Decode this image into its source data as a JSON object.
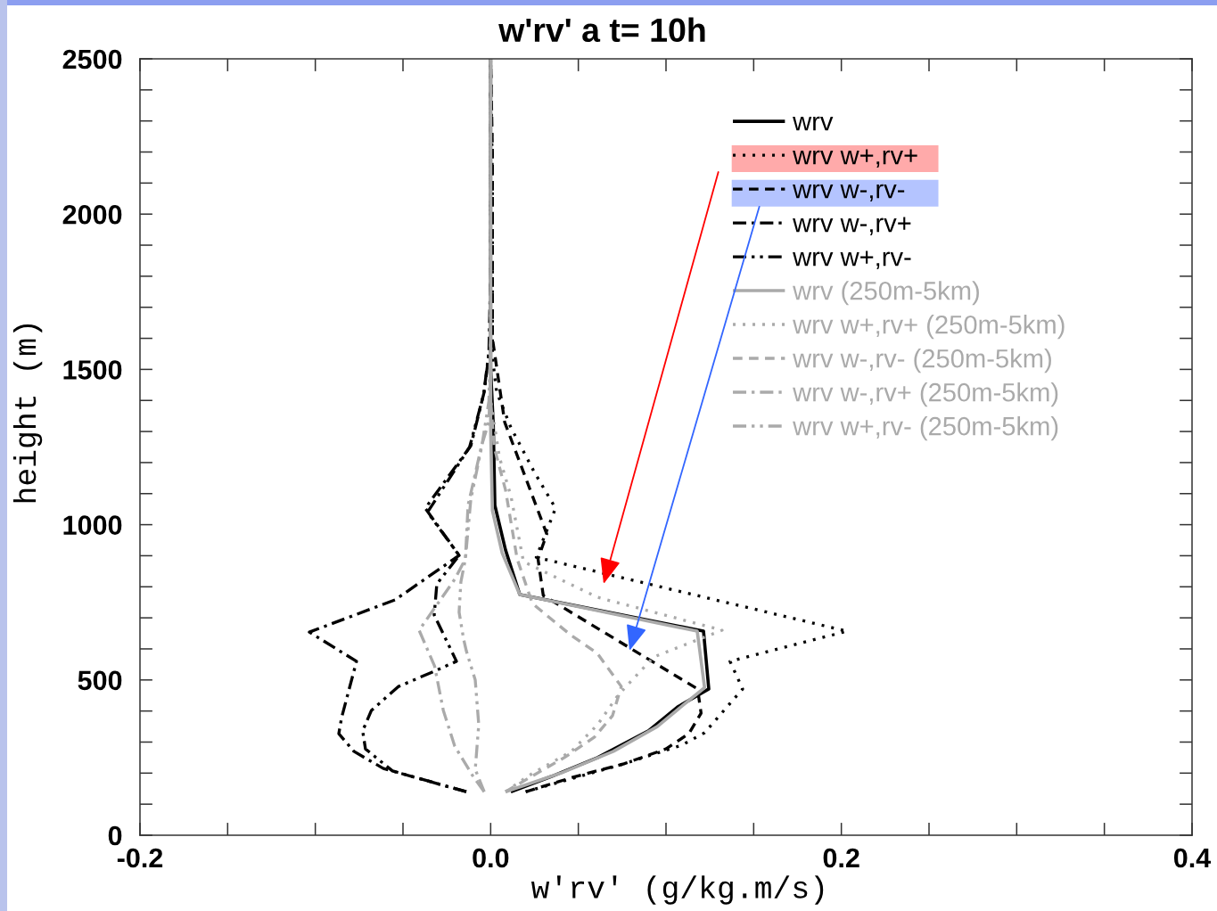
{
  "chart_data": {
    "type": "line",
    "title": "w'rv' a t= 10h",
    "xlabel": "w'rv' (g/kg.m/s)",
    "ylabel": "height (m)",
    "xlim": [
      -0.2,
      0.4
    ],
    "ylim": [
      0,
      2500
    ],
    "xticks": [
      -0.2,
      {
        "value": -0.15,
        "label": null
      },
      {
        "value": -0.1,
        "label": null
      },
      {
        "value": -0.05,
        "label": null
      },
      {
        "value": 0,
        "label": "0.0"
      },
      {
        "value": 0.05,
        "label": null
      },
      {
        "value": 0.1,
        "label": null
      },
      {
        "value": 0.15,
        "label": null
      },
      0.2,
      {
        "value": 0.25,
        "label": null
      },
      {
        "value": 0.3,
        "label": null
      },
      {
        "value": 0.35,
        "label": null
      },
      0.4
    ],
    "yticks": [
      0,
      {
        "value": 100,
        "label": null
      },
      {
        "value": 200,
        "label": null
      },
      {
        "value": 300,
        "label": null
      },
      {
        "value": 400,
        "label": null
      },
      500,
      {
        "value": 600,
        "label": null
      },
      {
        "value": 700,
        "label": null
      },
      {
        "value": 800,
        "label": null
      },
      {
        "value": 900,
        "label": null
      },
      1000,
      {
        "value": 1100,
        "label": null
      },
      {
        "value": 1200,
        "label": null
      },
      {
        "value": 1300,
        "label": null
      },
      {
        "value": 1400,
        "label": null
      },
      1500,
      {
        "value": 1600,
        "label": null
      },
      {
        "value": 1700,
        "label": null
      },
      {
        "value": 1800,
        "label": null
      },
      {
        "value": 1900,
        "label": null
      },
      2000,
      {
        "value": 2100,
        "label": null
      },
      {
        "value": 2200,
        "label": null
      },
      {
        "value": 2300,
        "label": null
      },
      {
        "value": 2400,
        "label": null
      },
      2500
    ],
    "grid": false,
    "legend": "top right",
    "series": [
      {
        "name": "wrv",
        "color": "#000000",
        "line_style": "solid",
        "x": [
          0.0115,
          0.035,
          0.061,
          0.09,
          0.1066,
          0.1244,
          0.1214,
          0.0166,
          0.0085,
          0.0024,
          0.0015,
          0,
          0
        ],
        "values": [
          140,
          190,
          250,
          336,
          413,
          471,
          657,
          775,
          918,
          1062,
          1320,
          1500,
          2500
        ]
      },
      {
        "name": "wrv w+,rv+",
        "color": "#000000",
        "line_style": "dotted",
        "x": [
          0.02,
          0.076,
          0.109,
          0.122,
          0.1437,
          0.1365,
          0.2033,
          0.026,
          0.037,
          0.025,
          0.0116,
          0.0034,
          0.001,
          0.001,
          0
        ],
        "values": [
          140,
          230,
          290,
          330,
          471,
          560,
          657,
          895,
          1053,
          1168,
          1312,
          1427,
          1540,
          2100,
          2500
        ]
      },
      {
        "name": "wrv w-,rv-",
        "color": "#000000",
        "line_style": "dashed",
        "x": [
          0.02,
          0.047,
          0.076,
          0.1,
          0.113,
          0.12,
          0.118,
          0.03,
          0.027,
          0.032,
          0.02,
          0.008,
          0.001,
          0.001,
          0
        ],
        "values": [
          140,
          187,
          230,
          278,
          327,
          393,
          471,
          772,
          890,
          970,
          1150,
          1330,
          1600,
          2200,
          2500
        ]
      },
      {
        "name": "wrv w-,rv+",
        "color": "#000000",
        "line_style": "dashdot",
        "x": [
          -0.0139,
          -0.0612,
          -0.078,
          -0.0866,
          -0.085,
          -0.0765,
          -0.1034,
          -0.0545,
          -0.018,
          -0.0373,
          -0.0113,
          -0.0037,
          -0.001,
          0,
          0
        ],
        "values": [
          140,
          215,
          270,
          327,
          379,
          560,
          654,
          758,
          901,
          1053,
          1254,
          1427,
          1550,
          1828,
          2500
        ]
      },
      {
        "name": "wrv w+,rv-",
        "color": "#000000",
        "line_style": "dashdotdot",
        "x": [
          -0.0139,
          -0.056,
          -0.0714,
          -0.073,
          -0.068,
          -0.0525,
          -0.0322,
          -0.0195,
          -0.0322,
          -0.0307,
          -0.018,
          -0.036,
          -0.012,
          -0.004,
          0,
          0
        ],
        "values": [
          140,
          207,
          278,
          336,
          402,
          479,
          528,
          560,
          709,
          809,
          901,
          1040,
          1250,
          1420,
          1600,
          2500
        ]
      },
      {
        "name": "wrv (250m-5km)",
        "color": "#aaaaaa",
        "line_style": "solid",
        "x": [
          0.0085,
          0.04,
          0.07,
          0.095,
          0.11,
          0.122,
          0.1178,
          0.0166,
          0.0065,
          0.001,
          0,
          0
        ],
        "values": [
          140,
          200,
          270,
          350,
          420,
          475,
          657,
          775,
          910,
          1045,
          1300,
          2500
        ]
      },
      {
        "name": "wrv w+,rv+ (250m-5km)",
        "color": "#aaaaaa",
        "line_style": "dotted",
        "x": [
          0.0085,
          0.0217,
          0.046,
          0.061,
          0.0725,
          0.093,
          0.132,
          0.061,
          0.0187,
          0.0116,
          0.005,
          0,
          0
        ],
        "values": [
          140,
          192,
          270,
          356,
          450,
          574,
          660,
          766,
          881,
          1091,
          1217,
          1400,
          2500
        ]
      },
      {
        "name": "wrv w-,rv- (250m-5km)",
        "color": "#aaaaaa",
        "line_style": "dashed",
        "x": [
          0.0085,
          0.0217,
          0.042,
          0.0592,
          0.0695,
          0.0745,
          0.0608,
          0.046,
          0.0238,
          0.0151,
          0.0085,
          0.002,
          0,
          0
        ],
        "values": [
          140,
          184,
          250,
          316,
          385,
          479,
          586,
          643,
          746,
          890,
          1111,
          1250,
          1400,
          2500
        ]
      },
      {
        "name": "wrv w-,rv+ (250m-5km)",
        "color": "#aaaaaa",
        "line_style": "dashdot",
        "x": [
          -0.0037,
          -0.0103,
          -0.0205,
          -0.027,
          -0.032,
          -0.0408,
          -0.0205,
          -0.0144,
          -0.0129,
          -0.0052,
          -0.001,
          0,
          0
        ],
        "values": [
          140,
          192,
          287,
          402,
          545,
          660,
          824,
          890,
          1062,
          1254,
          1332,
          1500,
          2500
        ]
      },
      {
        "name": "wrv w+,rv- (250m-5km)",
        "color": "#aaaaaa",
        "line_style": "dashdotdot",
        "x": [
          -0.0037,
          -0.0088,
          -0.0068,
          -0.0088,
          -0.0139,
          -0.0154,
          -0.018,
          -0.017,
          -0.0144,
          -0.0113,
          -0.005,
          -0.001,
          0,
          0
        ],
        "values": [
          140,
          212,
          356,
          500,
          594,
          631,
          718,
          815,
          890,
          1082,
          1254,
          1398,
          1600,
          2500
        ]
      }
    ]
  }
}
